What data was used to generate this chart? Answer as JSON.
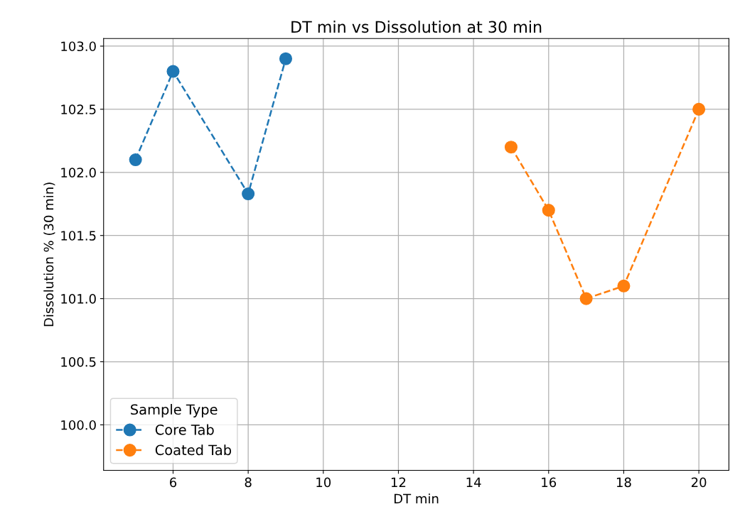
{
  "chart_data": {
    "type": "line",
    "title": "DT min vs Dissolution at 30 min",
    "xlabel": "DT min",
    "ylabel": "Dissolution % (30 min)",
    "legend_title": "Sample Type",
    "series": [
      {
        "name": "Core Tab",
        "color": "#1f77b4",
        "x": [
          5,
          6,
          8,
          9
        ],
        "values": [
          102.1,
          102.8,
          101.83,
          102.9
        ]
      },
      {
        "name": "Coated Tab",
        "color": "#ff7f0e",
        "x": [
          15,
          16,
          17,
          18,
          20
        ],
        "values": [
          102.2,
          101.7,
          101.0,
          101.1,
          102.5
        ]
      }
    ],
    "xlim": [
      4.15,
      20.8
    ],
    "ylim": [
      99.64,
      103.06
    ],
    "xticks": [
      6,
      8,
      10,
      12,
      14,
      16,
      18,
      20
    ],
    "yticks": [
      {
        "value": 100,
        "label": "100.0"
      },
      {
        "value": 100.5,
        "label": "100.5"
      },
      {
        "value": 101,
        "label": "101.0"
      },
      {
        "value": 101.5,
        "label": "101.5"
      },
      {
        "value": 102,
        "label": "102.0"
      },
      {
        "value": 102.5,
        "label": "102.5"
      },
      {
        "value": 103,
        "label": "103.0"
      }
    ],
    "grid": true,
    "legend": "bottom left",
    "marker": "circle",
    "line_style": "dashed"
  }
}
